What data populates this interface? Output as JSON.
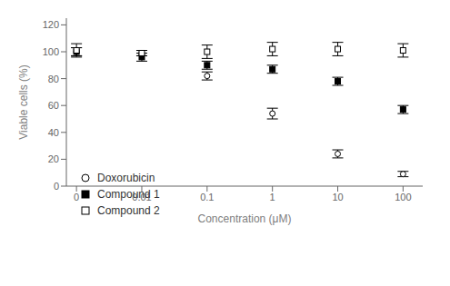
{
  "chart_data": {
    "type": "scatter",
    "xlabel": "Concentration (μM)",
    "ylabel": "Viable cells (%)",
    "log": "x",
    "xlim": [
      0.0007,
      200
    ],
    "xticks": [
      {
        "value": 0.001,
        "label": "0"
      },
      0.01,
      0.1,
      1,
      10,
      100
    ],
    "ylim": [
      0,
      125
    ],
    "yticks": [
      0,
      20,
      40,
      60,
      80,
      100,
      120
    ],
    "grid": false,
    "legend": "lower left",
    "x": [
      0.001,
      0.01,
      0.1,
      1,
      10,
      100
    ],
    "series": [
      {
        "name": "Doxorubicin",
        "color": "#000000",
        "marker": "circle_open",
        "values": [
          100,
          99,
          82,
          54,
          24,
          9
        ],
        "errors": [
          3,
          2,
          3,
          4,
          3,
          2
        ]
      },
      {
        "name": "Compound 1",
        "color": "#000000",
        "marker": "square",
        "values": [
          100,
          96,
          90,
          87,
          78,
          57
        ],
        "errors": [
          3,
          3,
          3,
          3,
          3,
          3
        ]
      },
      {
        "name": "Compound 2",
        "color": "#000000",
        "marker": "square_open",
        "values": [
          101,
          99,
          100,
          102,
          102,
          101
        ],
        "errors": [
          5,
          2,
          5,
          5,
          5,
          5
        ]
      }
    ]
  }
}
